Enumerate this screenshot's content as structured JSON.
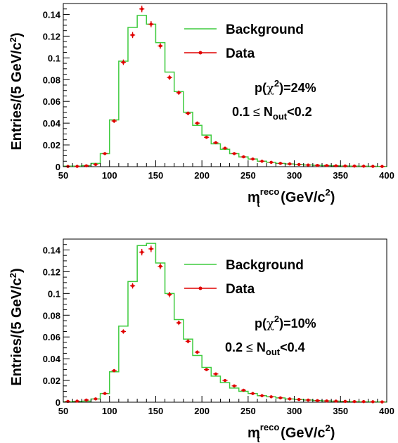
{
  "chart_data": [
    {
      "type": "histogram",
      "panel": "top",
      "ylabel": "Entries/(5 GeV/c",
      "ylabel_sup": "2",
      "ylabel_end": ")",
      "xlabel_main": "m",
      "xlabel_sup": "reco",
      "xlabel_sub": "t",
      "xlabel_unit": "(GeV/c",
      "xlabel_unit_sup": "2",
      "xlabel_unit_end": ")",
      "xlim": [
        50,
        400
      ],
      "ylim": [
        0,
        0.15
      ],
      "x_ticks": [
        "50",
        "100",
        "150",
        "200",
        "250",
        "300",
        "350",
        "400"
      ],
      "y_ticks": [
        "0",
        "0.02",
        "0.04",
        "0.06",
        "0.08",
        "0.1",
        "0.12",
        "0.14"
      ],
      "legend": {
        "background": "Background",
        "data": "Data"
      },
      "annotation": {
        "p_prefix": "p(",
        "chi": "χ",
        "chi_sup": "2",
        "p_suffix": ")=24%",
        "range_prefix": "0.1",
        "le": "≤",
        "n": "N",
        "n_sub": "out",
        "range_suffix": "<0.2"
      },
      "bin_edges": [
        50,
        60,
        70,
        80,
        90,
        100,
        110,
        120,
        130,
        140,
        150,
        160,
        170,
        180,
        190,
        200,
        210,
        220,
        230,
        240,
        250,
        260,
        270,
        280,
        290,
        300,
        310,
        320,
        330,
        340,
        350,
        360,
        370,
        380,
        390,
        400
      ],
      "background": [
        0.0005,
        0.0005,
        0.001,
        0.003,
        0.012,
        0.043,
        0.097,
        0.128,
        0.139,
        0.131,
        0.114,
        0.087,
        0.069,
        0.05,
        0.038,
        0.029,
        0.021,
        0.016,
        0.012,
        0.009,
        0.007,
        0.005,
        0.004,
        0.003,
        0.0025,
        0.002,
        0.0015,
        0.0012,
        0.001,
        0.0008,
        0.0006,
        0.0005,
        0.0004,
        0.0003,
        0.0002
      ],
      "data_x": [
        55,
        65,
        75,
        85,
        95,
        105,
        115,
        125,
        135,
        145,
        155,
        165,
        175,
        185,
        195,
        205,
        215,
        225,
        235,
        245,
        255,
        265,
        275,
        285,
        295,
        305,
        315,
        325,
        335,
        345,
        355,
        365,
        375,
        385,
        395
      ],
      "data_y": [
        0.0002,
        0.0003,
        0.0008,
        0.002,
        0.012,
        0.042,
        0.096,
        0.121,
        0.145,
        0.131,
        0.111,
        0.082,
        0.068,
        0.049,
        0.04,
        0.027,
        0.022,
        0.017,
        0.012,
        0.009,
        0.007,
        0.005,
        0.004,
        0.003,
        0.0025,
        0.002,
        0.0015,
        0.0012,
        0.001,
        0.0008,
        0.0006,
        0.0005,
        0.0004,
        0.0003,
        0.0002
      ],
      "data_err": [
        0.0004,
        0.0004,
        0.0005,
        0.0008,
        0.0012,
        0.0018,
        0.0025,
        0.0028,
        0.003,
        0.0028,
        0.0026,
        0.0022,
        0.002,
        0.0017,
        0.0015,
        0.0013,
        0.0011,
        0.001,
        0.0009,
        0.0008,
        0.0007,
        0.0006,
        0.0005,
        0.0005,
        0.0004,
        0.0004,
        0.0004,
        0.0003,
        0.0003,
        0.0003,
        0.0003,
        0.0003,
        0.0003,
        0.0003,
        0.0003
      ]
    },
    {
      "type": "histogram",
      "panel": "bottom",
      "ylabel": "Entries/(5 GeV/c",
      "ylabel_sup": "2",
      "ylabel_end": ")",
      "xlabel_main": "m",
      "xlabel_sup": "reco",
      "xlabel_sub": "t",
      "xlabel_unit": "(GeV/c",
      "xlabel_unit_sup": "2",
      "xlabel_unit_end": ")",
      "xlim": [
        50,
        400
      ],
      "ylim": [
        0,
        0.15
      ],
      "x_ticks": [
        "50",
        "100",
        "150",
        "200",
        "250",
        "300",
        "350",
        "400"
      ],
      "y_ticks": [
        "0",
        "0.02",
        "0.04",
        "0.06",
        "0.08",
        "0.1",
        "0.12",
        "0.14"
      ],
      "legend": {
        "background": "Background",
        "data": "Data"
      },
      "annotation": {
        "p_prefix": "p(",
        "chi": "χ",
        "chi_sup": "2",
        "p_suffix": ")=10%",
        "range_prefix": "0.2",
        "le": "≤",
        "n": "N",
        "n_sub": "out",
        "range_suffix": "<0.4"
      },
      "bin_edges": [
        50,
        60,
        70,
        80,
        90,
        100,
        110,
        120,
        130,
        140,
        150,
        160,
        170,
        180,
        190,
        200,
        210,
        220,
        230,
        240,
        250,
        260,
        270,
        280,
        290,
        300,
        310,
        320,
        330,
        340,
        350,
        360,
        370,
        380,
        390,
        400
      ],
      "background": [
        0.0005,
        0.0008,
        0.001,
        0.003,
        0.008,
        0.028,
        0.07,
        0.111,
        0.144,
        0.146,
        0.128,
        0.1,
        0.076,
        0.058,
        0.043,
        0.032,
        0.024,
        0.018,
        0.013,
        0.01,
        0.008,
        0.006,
        0.005,
        0.004,
        0.003,
        0.0025,
        0.002,
        0.0015,
        0.0012,
        0.001,
        0.0008,
        0.0006,
        0.0005,
        0.0004,
        0.0003
      ],
      "data_x": [
        55,
        65,
        75,
        85,
        95,
        105,
        115,
        125,
        135,
        145,
        155,
        165,
        175,
        185,
        195,
        205,
        215,
        225,
        235,
        245,
        255,
        265,
        275,
        285,
        295,
        305,
        315,
        325,
        335,
        345,
        355,
        365,
        375,
        385,
        395
      ],
      "data_y": [
        0.0008,
        0.001,
        0.002,
        0.003,
        0.008,
        0.029,
        0.065,
        0.107,
        0.138,
        0.141,
        0.125,
        0.099,
        0.073,
        0.056,
        0.046,
        0.03,
        0.026,
        0.02,
        0.015,
        0.011,
        0.008,
        0.006,
        0.005,
        0.004,
        0.003,
        0.0025,
        0.002,
        0.0015,
        0.0012,
        0.001,
        0.0008,
        0.0006,
        0.0005,
        0.0004,
        0.0003
      ],
      "data_err": [
        0.0004,
        0.0005,
        0.0006,
        0.0008,
        0.001,
        0.0015,
        0.002,
        0.0025,
        0.003,
        0.003,
        0.0028,
        0.0025,
        0.0021,
        0.0018,
        0.0016,
        0.0013,
        0.0012,
        0.001,
        0.0009,
        0.0008,
        0.0007,
        0.0006,
        0.0005,
        0.0005,
        0.0004,
        0.0004,
        0.0004,
        0.0003,
        0.0003,
        0.0003,
        0.0003,
        0.0003,
        0.0003,
        0.0003,
        0.0003
      ]
    }
  ]
}
